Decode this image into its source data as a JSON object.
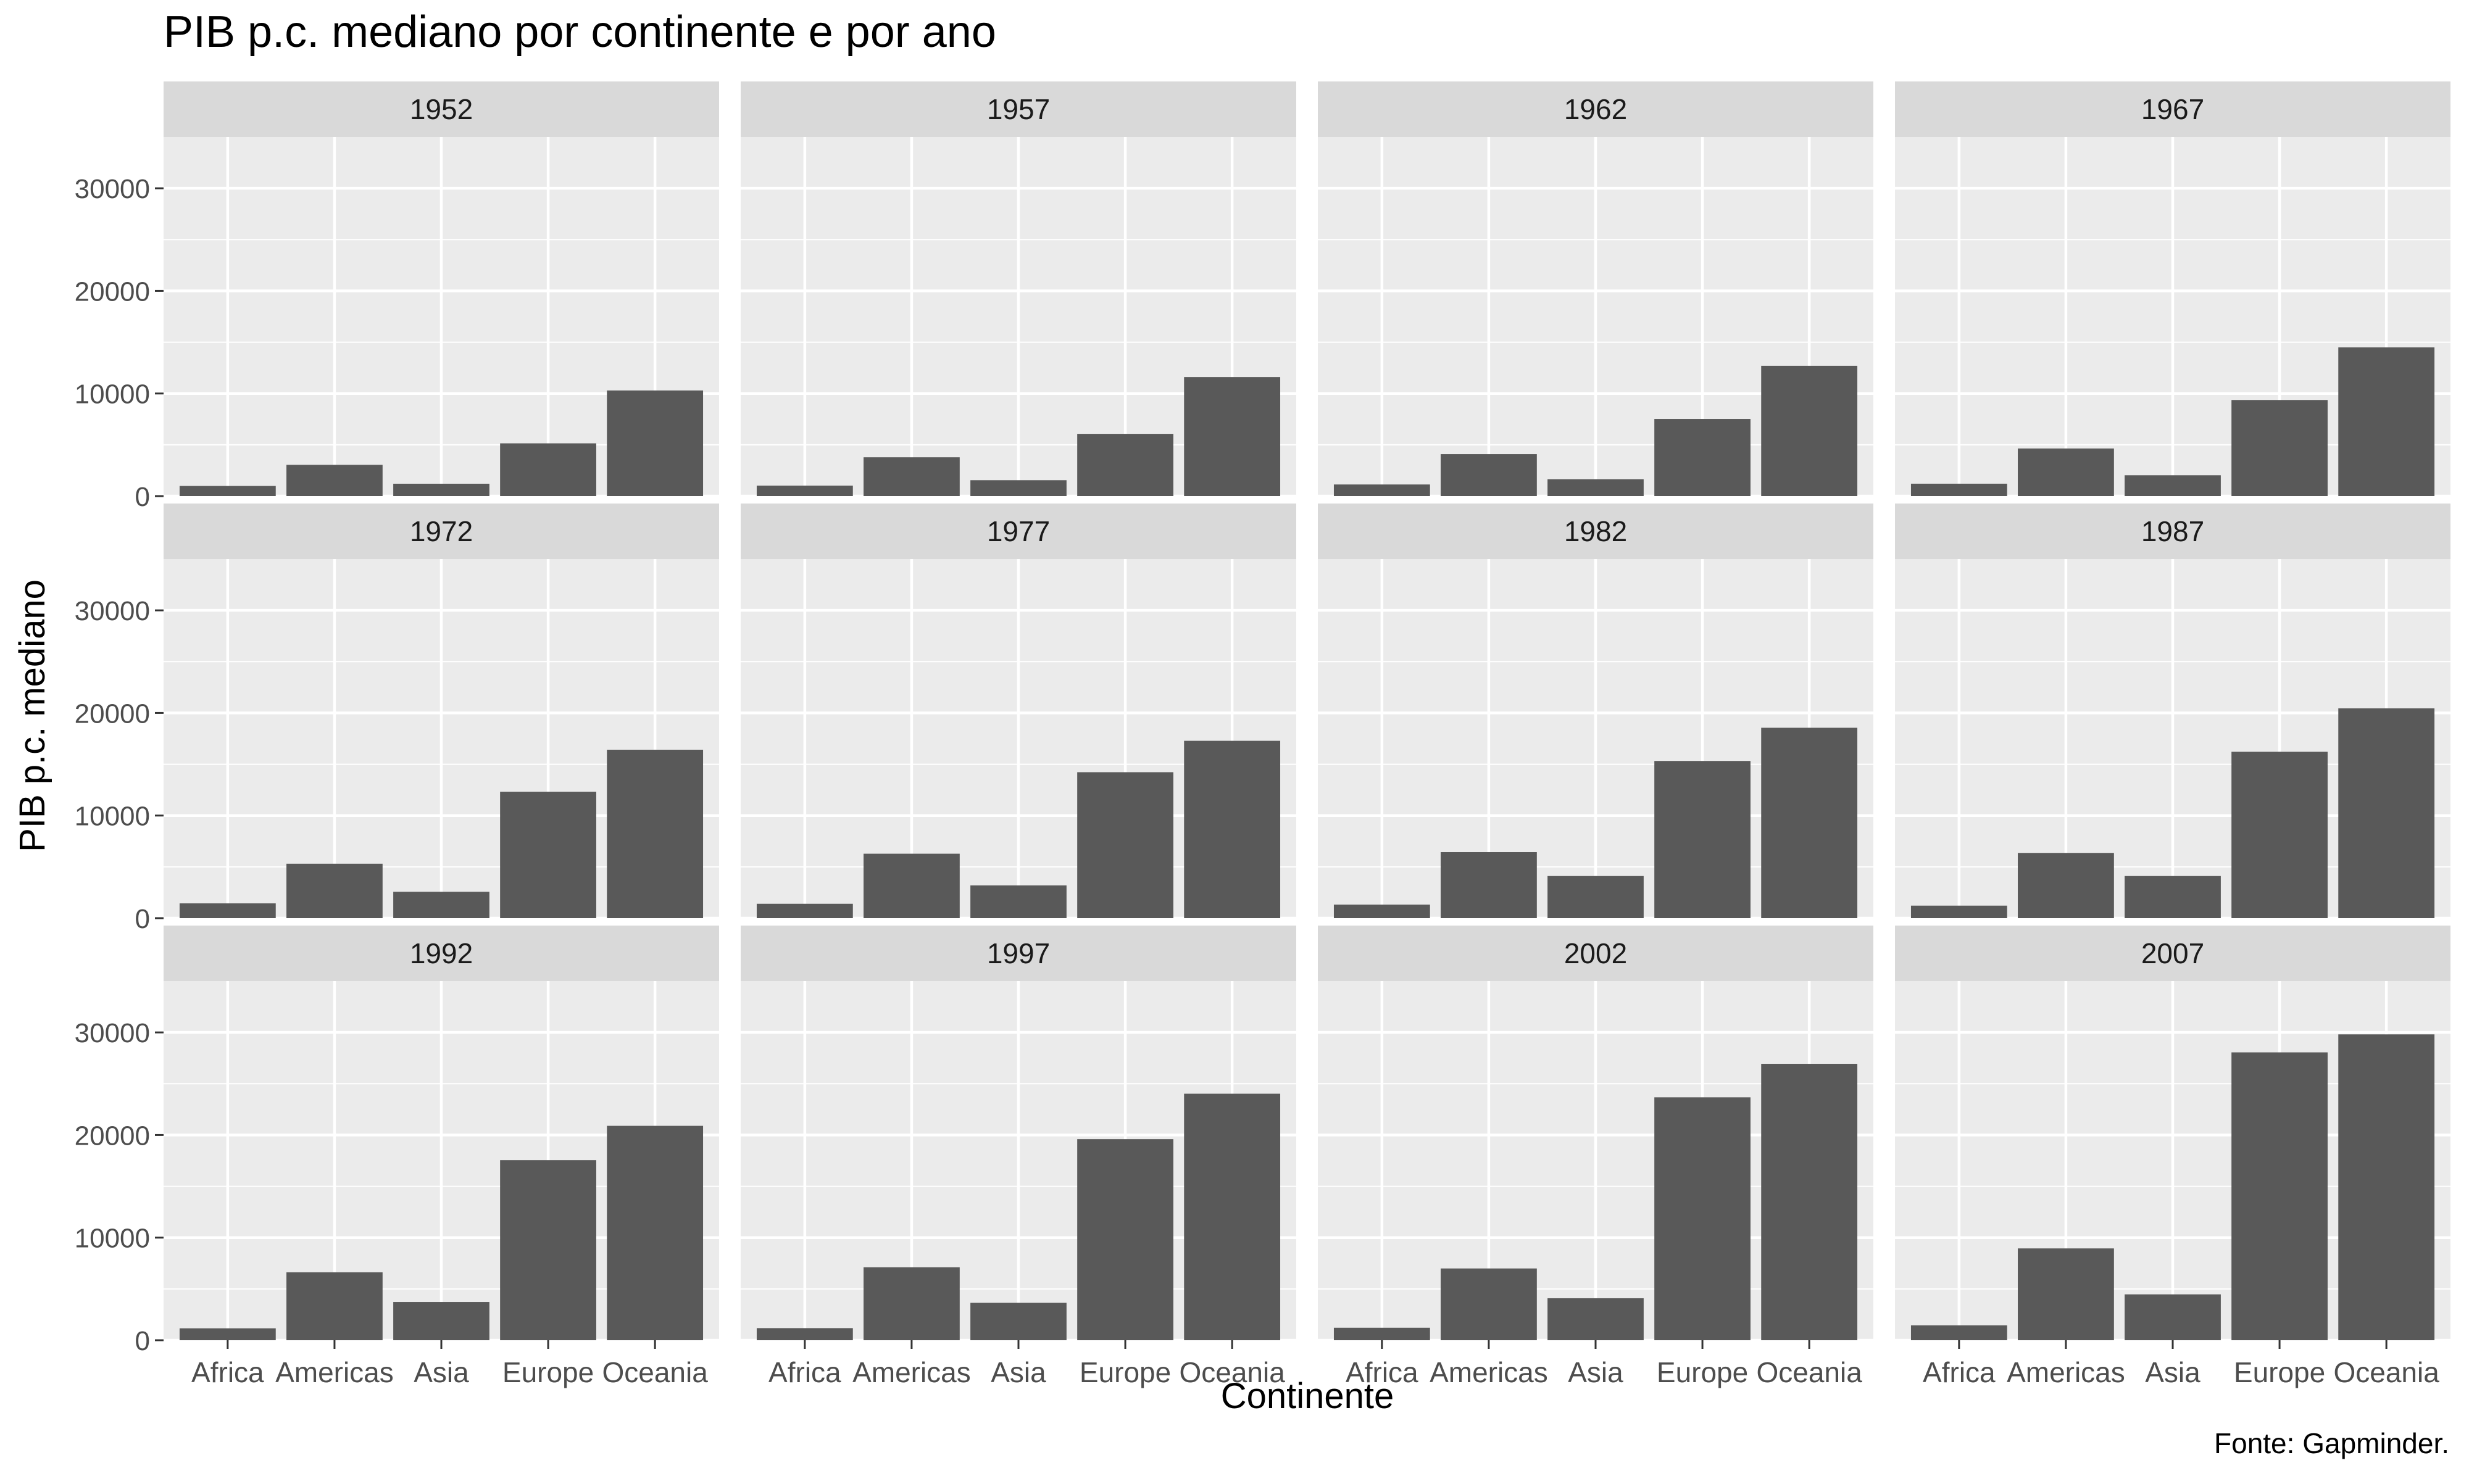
{
  "title": "PIB p.c. mediano por continente e por ano",
  "xlabel": "Continente",
  "ylabel": "PIB p.c. mediano",
  "caption": "Fonte: Gapminder.",
  "colors": {
    "bar": "#595959",
    "panel_bg": "#ebebeb",
    "strip_bg": "#d9d9d9",
    "grid": "#ffffff",
    "text": "#000000",
    "tick_text": "#4d4d4d",
    "tick_mark": "#333333"
  },
  "chart_data": {
    "type": "bar",
    "facet_by": "year",
    "categories": [
      "Africa",
      "Americas",
      "Asia",
      "Europe",
      "Oceania"
    ],
    "ylim": [
      0,
      35000
    ],
    "yticks": [
      0,
      10000,
      20000,
      30000
    ],
    "grid": true,
    "legend": "none",
    "panels": [
      {
        "year": "1952",
        "values": [
          987,
          3048,
          1207,
          5142,
          10298
        ]
      },
      {
        "year": "1957",
        "values": [
          1024,
          3781,
          1548,
          6067,
          11599
        ]
      },
      {
        "year": "1962",
        "values": [
          1133,
          4086,
          1650,
          7515,
          12696
        ]
      },
      {
        "year": "1967",
        "values": [
          1210,
          4643,
          2029,
          9367,
          14495
        ]
      },
      {
        "year": "1972",
        "values": [
          1443,
          5305,
          2572,
          12326,
          16417
        ]
      },
      {
        "year": "1977",
        "values": [
          1400,
          6281,
          3195,
          14226,
          17284
        ]
      },
      {
        "year": "1982",
        "values": [
          1324,
          6434,
          4106,
          15323,
          18555
        ]
      },
      {
        "year": "1987",
        "values": [
          1220,
          6360,
          4106,
          16215,
          20448
        ]
      },
      {
        "year": "1992",
        "values": [
          1162,
          6619,
          3726,
          17550,
          20894
        ]
      },
      {
        "year": "1997",
        "values": [
          1180,
          7114,
          3645,
          19596,
          24024
        ]
      },
      {
        "year": "2002",
        "values": [
          1216,
          6995,
          4091,
          23674,
          26939
        ]
      },
      {
        "year": "2007",
        "values": [
          1452,
          8948,
          4471,
          28054,
          29810
        ]
      }
    ]
  }
}
